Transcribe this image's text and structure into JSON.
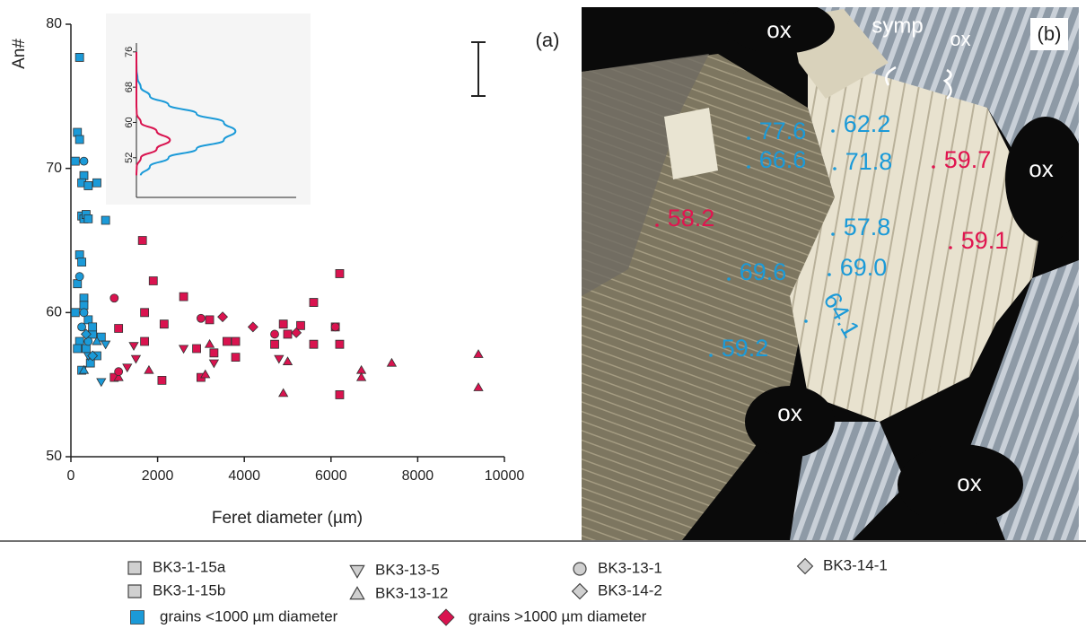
{
  "chart_data": [
    {
      "type": "scatter",
      "panel_label": "(a)",
      "x_label": "Feret diameter (µm)",
      "y_label": "An#",
      "xlim": [
        0,
        10000
      ],
      "xticks": [
        0,
        2000,
        4000,
        6000,
        8000,
        10000
      ],
      "ylim": [
        50,
        80
      ],
      "yticks": [
        50,
        60,
        70,
        80
      ],
      "classes": [
        {
          "name": "grains <1000 µm diameter",
          "color": "#1b9ad8",
          "marker": "square"
        },
        {
          "name": "grains >1000 µm diameter",
          "color": "#d9134f",
          "marker": "diamond"
        }
      ],
      "series": [
        {
          "name": "BK3-1-15a",
          "marker": "square",
          "x": [
            200,
            150,
            200,
            100,
            300,
            250,
            400,
            600,
            250,
            300,
            350,
            400,
            800,
            200,
            250,
            150,
            300,
            100,
            400,
            500,
            200,
            350,
            600,
            700,
            450,
            250,
            1650,
            1900,
            2600,
            6200,
            5600,
            3200,
            1700,
            1100,
            2150,
            3600,
            3800,
            4900,
            5300,
            5000,
            6100,
            6200,
            3800,
            5600,
            6200,
            2100,
            3000,
            1000,
            3300,
            4700
          ],
          "y": [
            77.7,
            72.5,
            72,
            70.5,
            69.5,
            69,
            68.8,
            69,
            66.7,
            66.5,
            66.8,
            66.5,
            66.4,
            64,
            63.5,
            62,
            61,
            60,
            59.5,
            58.5,
            58,
            57.5,
            57,
            58.3,
            56.5,
            56,
            65,
            62.2,
            61.1,
            62.7,
            60.7,
            59.5,
            60,
            58.9,
            59.2,
            58,
            58,
            59.2,
            59.1,
            58.5,
            59,
            57.8,
            56.9,
            57.8,
            54.3,
            55.3,
            55.5,
            55.5,
            57.2,
            57.8
          ],
          "class": [
            0,
            0,
            0,
            0,
            0,
            0,
            0,
            0,
            0,
            0,
            0,
            0,
            0,
            0,
            0,
            0,
            0,
            0,
            0,
            0,
            0,
            0,
            0,
            0,
            0,
            0,
            1,
            1,
            1,
            1,
            1,
            1,
            1,
            1,
            1,
            1,
            1,
            1,
            1,
            1,
            1,
            1,
            1,
            1,
            1,
            1,
            1,
            1,
            1,
            1
          ]
        },
        {
          "name": "BK3-1-15b",
          "marker": "square",
          "x": [
            300,
            500,
            150,
            1700,
            2900
          ],
          "y": [
            60.5,
            59,
            57.5,
            58,
            57.5
          ],
          "class": [
            0,
            0,
            0,
            1,
            1
          ]
        },
        {
          "name": "BK3-13-5",
          "marker": "triangle-down",
          "x": [
            700,
            400,
            800,
            1450,
            2600,
            1500,
            3300,
            4800,
            1300
          ],
          "y": [
            55.2,
            57,
            57.8,
            57.7,
            57.5,
            56.8,
            56.5,
            56.8,
            56.2
          ],
          "class": [
            0,
            0,
            0,
            1,
            1,
            1,
            1,
            1,
            1
          ]
        },
        {
          "name": "BK3-13-12",
          "marker": "triangle-up",
          "x": [
            300,
            600,
            1100,
            1800,
            3100,
            4900,
            5000,
            6700,
            6700,
            7400,
            9400,
            9400,
            3200
          ],
          "y": [
            56,
            58,
            55.5,
            56,
            55.7,
            54.4,
            56.6,
            56,
            55.5,
            56.5,
            57.1,
            54.8,
            57.8
          ],
          "class": [
            0,
            0,
            1,
            1,
            1,
            1,
            1,
            1,
            1,
            1,
            1,
            1,
            1
          ]
        },
        {
          "name": "BK3-13-1",
          "marker": "circle",
          "x": [
            300,
            200,
            300,
            250,
            400,
            1000,
            3000,
            4700,
            6100,
            1100
          ],
          "y": [
            70.5,
            62.5,
            60,
            59,
            58,
            61,
            59.6,
            58.5,
            59,
            55.9
          ],
          "class": [
            0,
            0,
            0,
            0,
            0,
            1,
            1,
            1,
            1,
            1
          ]
        },
        {
          "name": "BK3-14-2",
          "marker": "diamond",
          "x": [
            350,
            3500,
            5200
          ],
          "y": [
            58.5,
            59.7,
            58.6
          ],
          "class": [
            0,
            1,
            1
          ]
        },
        {
          "name": "BK3-14-1",
          "marker": "diamond",
          "x": [
            500,
            4200
          ],
          "y": [
            57,
            59
          ],
          "class": [
            0,
            1
          ]
        }
      ]
    },
    {
      "type": "density",
      "y": [
        48,
        50,
        52,
        54,
        56,
        58,
        60,
        62,
        64,
        66,
        68,
        70,
        72,
        74,
        76
      ],
      "ylim": [
        43,
        78
      ],
      "yticks": [
        52,
        60,
        68,
        76
      ],
      "xlim": [
        0,
        1
      ],
      "series": [
        {
          "color": "#1b9ad8",
          "values": [
            0.027,
            0.084,
            0.201,
            0.376,
            0.547,
            0.62,
            0.547,
            0.376,
            0.201,
            0.084,
            0.027,
            0.007,
            0.001,
            0,
            0
          ]
        },
        {
          "color": "#d9134f",
          "values": [
            0,
            0.002,
            0.028,
            0.127,
            0.21,
            0.127,
            0.028,
            0.002,
            0,
            0,
            0,
            0,
            0,
            0,
            0
          ]
        }
      ]
    }
  ],
  "panel_b": {
    "label": "(b)",
    "annotations": [
      {
        "text": "ox",
        "color": "#ffffff"
      },
      {
        "text": "ox",
        "color": "#ffffff"
      },
      {
        "text": "ox",
        "color": "#ffffff"
      },
      {
        "text": "ox",
        "color": "#ffffff"
      },
      {
        "text": "symp",
        "color": "#ffffff"
      },
      {
        "text": "ox",
        "color": "#ffffff"
      },
      {
        "text": "77.6",
        "color": "#1b9ad8"
      },
      {
        "text": "62.2",
        "color": "#1b9ad8"
      },
      {
        "text": "66.6",
        "color": "#1b9ad8"
      },
      {
        "text": "71.8",
        "color": "#1b9ad8"
      },
      {
        "text": "57.8",
        "color": "#1b9ad8"
      },
      {
        "text": "69.0",
        "color": "#1b9ad8"
      },
      {
        "text": "69.6",
        "color": "#1b9ad8"
      },
      {
        "text": "64.1",
        "color": "#1b9ad8"
      },
      {
        "text": "59.2",
        "color": "#1b9ad8"
      },
      {
        "text": "58.2",
        "color": "#e0154f"
      },
      {
        "text": "59.7",
        "color": "#e0154f"
      },
      {
        "text": "59.1",
        "color": "#e0154f"
      }
    ]
  }
}
